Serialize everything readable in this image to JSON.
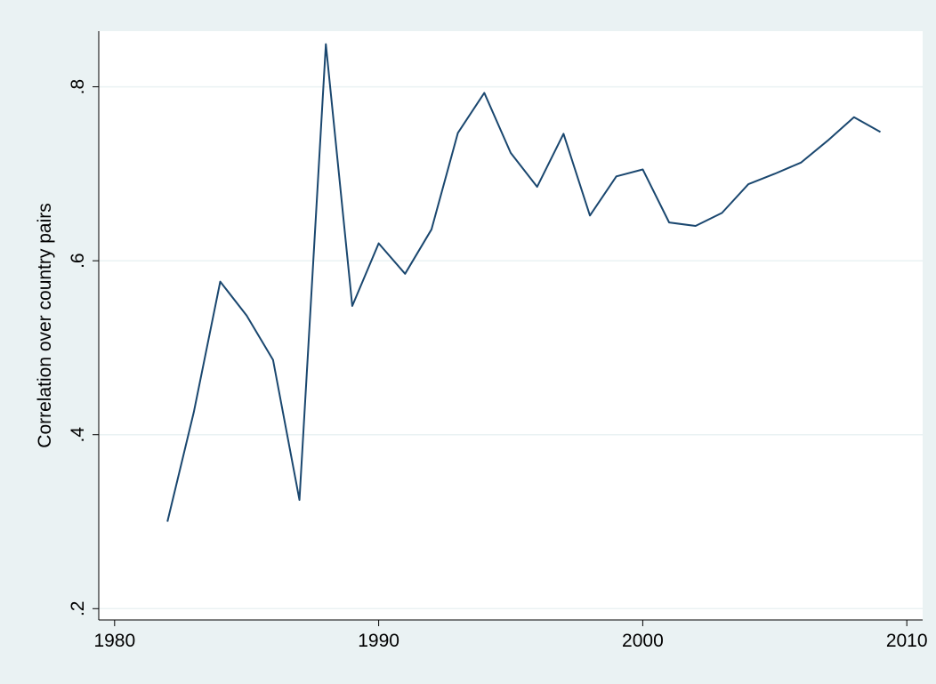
{
  "chart_data": {
    "type": "line",
    "y_label": "Correlation over country pairs",
    "x": [
      1982,
      1983,
      1984,
      1985,
      1986,
      1987,
      1988,
      1989,
      1990,
      1991,
      1992,
      1993,
      1994,
      1995,
      1996,
      1997,
      1998,
      1999,
      2000,
      2001,
      2002,
      2003,
      2004,
      2005,
      2006,
      2007,
      2008,
      2009
    ],
    "series": [
      {
        "color": "#1a476f",
        "values": [
          0.3,
          0.426,
          0.576,
          0.537,
          0.486,
          0.325,
          0.849,
          0.548,
          0.62,
          0.585,
          0.636,
          0.747,
          0.793,
          0.724,
          0.685,
          0.746,
          0.652,
          0.697,
          0.705,
          0.644,
          0.64,
          0.655,
          0.688,
          0.7,
          0.713,
          0.738,
          0.765,
          0.748
        ]
      }
    ],
    "xlim": [
      1979.4,
      2010.6
    ],
    "ylim": [
      0.187,
      0.864
    ],
    "xticks": [
      1980,
      1990,
      2000,
      2010
    ],
    "yticks": [
      {
        "value": 0.2,
        "label": ".2"
      },
      {
        "value": 0.4,
        "label": ".4"
      },
      {
        "value": 0.6,
        "label": ".6"
      },
      {
        "value": 0.8,
        "label": ".8"
      }
    ],
    "grid": true
  }
}
